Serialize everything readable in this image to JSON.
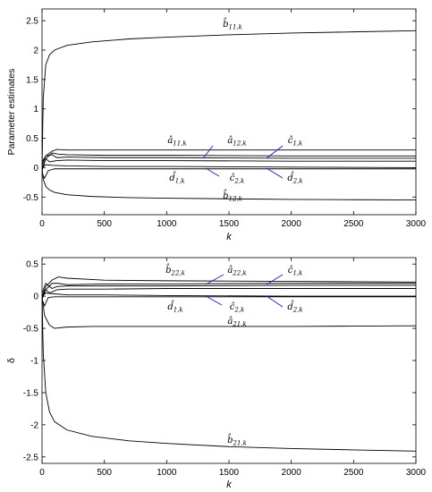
{
  "chart_data": [
    {
      "type": "line",
      "xlabel": "k",
      "ylabel": "Parameter estimates",
      "xlim": [
        0,
        3000
      ],
      "ylim": [
        -0.8,
        2.7
      ],
      "xticks": [
        0,
        500,
        1000,
        1500,
        2000,
        2500,
        3000
      ],
      "yticks": [
        -0.5,
        0,
        0.5,
        1,
        1.5,
        2,
        2.5
      ],
      "xtick_labels": [
        "0",
        "500",
        "1000",
        "1500",
        "2000",
        "2500",
        "3000"
      ],
      "ytick_labels": [
        "-0.5",
        "0",
        "0.5",
        "1",
        "1.5",
        "2",
        "2.5"
      ],
      "grid": false,
      "series": [
        {
          "name": "b̂11,k",
          "x": [
            0,
            10,
            30,
            60,
            100,
            200,
            400,
            700,
            1000,
            1500,
            2000,
            2500,
            3000
          ],
          "y": [
            0,
            1.2,
            1.75,
            1.92,
            2.0,
            2.08,
            2.14,
            2.19,
            2.22,
            2.26,
            2.29,
            2.31,
            2.33
          ]
        },
        {
          "name": "â11,k",
          "x": [
            0,
            30,
            80,
            120,
            200,
            500,
            1000,
            2000,
            3000
          ],
          "y": [
            0.05,
            0.2,
            0.28,
            0.31,
            0.3,
            0.3,
            0.3,
            0.3,
            0.3
          ]
        },
        {
          "name": "â12,k",
          "x": [
            0,
            30,
            80,
            130,
            200,
            500,
            1000,
            2000,
            3000
          ],
          "y": [
            0.0,
            0.15,
            0.25,
            0.23,
            0.22,
            0.21,
            0.21,
            0.2,
            0.2
          ]
        },
        {
          "name": "ĉ1,k",
          "x": [
            0,
            30,
            80,
            120,
            200,
            500,
            1000,
            2000,
            3000
          ],
          "y": [
            0.1,
            0.2,
            0.22,
            0.17,
            0.18,
            0.17,
            0.17,
            0.16,
            0.16
          ]
        },
        {
          "name": "ĉ2,k",
          "x": [
            0,
            30,
            60,
            120,
            200,
            500,
            1000,
            2000,
            3000
          ],
          "y": [
            -0.05,
            0.15,
            0.1,
            0.12,
            0.13,
            0.12,
            0.12,
            0.11,
            0.11
          ]
        },
        {
          "name": "d̂1,k",
          "x": [
            0,
            30,
            80,
            200,
            500,
            1000,
            2000,
            3000
          ],
          "y": [
            0.0,
            0.05,
            0.04,
            0.03,
            0.02,
            0.02,
            0.01,
            0.0
          ]
        },
        {
          "name": "d̂2,k",
          "x": [
            0,
            20,
            50,
            100,
            200,
            500,
            1000,
            2000,
            3000
          ],
          "y": [
            -0.1,
            -0.18,
            -0.05,
            -0.02,
            -0.02,
            -0.02,
            -0.02,
            -0.02,
            -0.02
          ]
        },
        {
          "name": "b̂12,k",
          "x": [
            0,
            10,
            30,
            60,
            100,
            200,
            400,
            700,
            1000,
            1500,
            2000,
            2500,
            3000
          ],
          "y": [
            0,
            -0.2,
            -0.32,
            -0.38,
            -0.42,
            -0.46,
            -0.49,
            -0.51,
            -0.52,
            -0.53,
            -0.54,
            -0.545,
            -0.55
          ]
        }
      ],
      "annotations": [
        {
          "label": "b̂",
          "sub": "11,k"
        },
        {
          "label": "â",
          "sub": "11,k"
        },
        {
          "label": "â",
          "sub": "12,k"
        },
        {
          "label": "ĉ",
          "sub": "1,k"
        },
        {
          "label": "d̂",
          "sub": "1,k"
        },
        {
          "label": "ĉ",
          "sub": "2,k"
        },
        {
          "label": "d̂",
          "sub": "2,k"
        },
        {
          "label": "b̂",
          "sub": "12,k"
        }
      ]
    },
    {
      "type": "line",
      "xlabel": "k",
      "ylabel": "δ",
      "xlim": [
        0,
        3000
      ],
      "ylim": [
        -2.6,
        0.6
      ],
      "xticks": [
        0,
        500,
        1000,
        1500,
        2000,
        2500,
        3000
      ],
      "yticks": [
        -2.5,
        -2,
        -1.5,
        -1,
        -0.5,
        0,
        0.5
      ],
      "xtick_labels": [
        "0",
        "500",
        "1000",
        "1500",
        "2000",
        "2500",
        "3000"
      ],
      "ytick_labels": [
        "-2.5",
        "-2",
        "-1.5",
        "-1",
        "-0.5",
        "0",
        "0.5"
      ],
      "grid": false,
      "series": [
        {
          "name": "b̂22,k",
          "x": [
            0,
            30,
            80,
            130,
            200,
            500,
            1000,
            2000,
            3000
          ],
          "y": [
            0.0,
            0.15,
            0.25,
            0.3,
            0.28,
            0.25,
            0.24,
            0.23,
            0.22
          ]
        },
        {
          "name": "â22,k",
          "x": [
            0,
            30,
            80,
            130,
            200,
            500,
            1000,
            2000,
            3000
          ],
          "y": [
            0.0,
            0.1,
            0.2,
            0.2,
            0.18,
            0.19,
            0.19,
            0.2,
            0.2
          ]
        },
        {
          "name": "ĉ1,k",
          "x": [
            0,
            30,
            80,
            120,
            200,
            500,
            1000,
            2000,
            3000
          ],
          "y": [
            0.05,
            0.2,
            0.12,
            0.15,
            0.16,
            0.16,
            0.16,
            0.17,
            0.17
          ]
        },
        {
          "name": "ĉ2,k",
          "x": [
            0,
            30,
            60,
            120,
            200,
            500,
            1000,
            2000,
            3000
          ],
          "y": [
            -0.05,
            0.1,
            0.05,
            0.1,
            0.11,
            0.11,
            0.12,
            0.12,
            0.12
          ]
        },
        {
          "name": "d̂1,k",
          "x": [
            0,
            30,
            80,
            200,
            500,
            1000,
            2000,
            3000
          ],
          "y": [
            0.0,
            0.05,
            0.04,
            0.02,
            0.02,
            0.01,
            0.0,
            0.0
          ]
        },
        {
          "name": "d̂2,k",
          "x": [
            0,
            20,
            50,
            100,
            200,
            500,
            1000,
            2000,
            3000
          ],
          "y": [
            -0.05,
            -0.15,
            -0.02,
            -0.01,
            -0.01,
            -0.01,
            -0.01,
            -0.01,
            -0.01
          ]
        },
        {
          "name": "â21,k",
          "x": [
            0,
            20,
            60,
            100,
            200,
            400,
            700,
            1000,
            1500,
            2000,
            2500,
            3000
          ],
          "y": [
            0,
            -0.3,
            -0.45,
            -0.5,
            -0.48,
            -0.47,
            -0.47,
            -0.47,
            -0.47,
            -0.47,
            -0.465,
            -0.46
          ]
        },
        {
          "name": "b̂21,k",
          "x": [
            0,
            10,
            30,
            60,
            100,
            200,
            400,
            700,
            1000,
            1500,
            2000,
            2500,
            3000
          ],
          "y": [
            0,
            -0.9,
            -1.5,
            -1.8,
            -1.95,
            -2.08,
            -2.18,
            -2.25,
            -2.29,
            -2.34,
            -2.37,
            -2.39,
            -2.41
          ]
        }
      ],
      "annotations": [
        {
          "label": "b̂",
          "sub": "22,k"
        },
        {
          "label": "â",
          "sub": "22,k"
        },
        {
          "label": "ĉ",
          "sub": "1,k"
        },
        {
          "label": "d̂",
          "sub": "1,k"
        },
        {
          "label": "ĉ",
          "sub": "2,k"
        },
        {
          "label": "d̂",
          "sub": "2,k"
        },
        {
          "label": "â",
          "sub": "21,k"
        },
        {
          "label": "b̂",
          "sub": "21,k"
        }
      ]
    }
  ]
}
